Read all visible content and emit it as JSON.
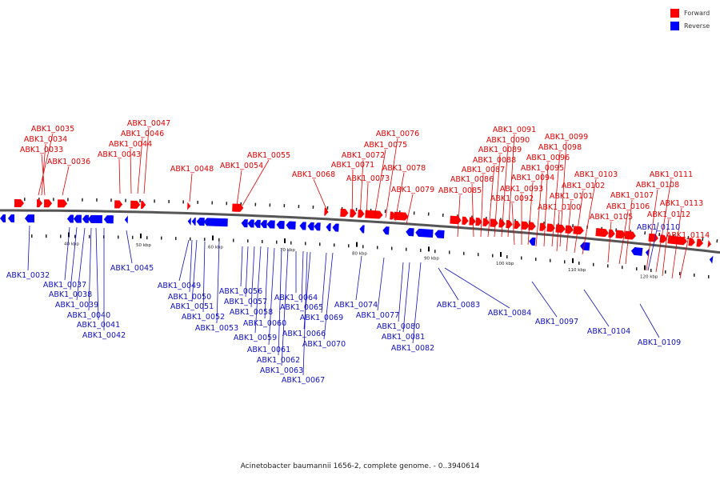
{
  "legend": {
    "forward_label": "Forward",
    "reverse_label": "Reverse",
    "forward_color": "#ff0000",
    "reverse_color": "#0000ff"
  },
  "caption": "Acinetobacter baumannii 1656-2, complete genome. - 0..3940614",
  "scale": {
    "unit": "kbp",
    "ticks": [
      "40 kbp",
      "50 kbp",
      "60 kbp",
      "70 kbp",
      "80 kbp",
      "90 kbp",
      "100 kbp",
      "110 kbp",
      "120 kbp"
    ]
  },
  "forward_genes": [
    "ABK1_0035",
    "ABK1_0034",
    "ABK1_0033",
    "ABK1_0036",
    "ABK1_0047",
    "ABK1_0046",
    "ABK1_0044",
    "ABK1_0043",
    "ABK1_0048",
    "ABK1_0055",
    "ABK1_0054",
    "ABK1_0068",
    "ABK1_0076",
    "ABK1_0075",
    "ABK1_0072",
    "ABK1_0071",
    "ABK1_0073",
    "ABK1_0078",
    "ABK1_0079",
    "ABK1_0091",
    "ABK1_0090",
    "ABK1_0089",
    "ABK1_0088",
    "ABK1_0087",
    "ABK1_0086",
    "ABK1_0085",
    "ABK1_0099",
    "ABK1_0098",
    "ABK1_0096",
    "ABK1_0095",
    "ABK1_0094",
    "ABK1_0093",
    "ABK1_0092",
    "ABK1_0103",
    "ABK1_0102",
    "ABK1_0101",
    "ABK1_0100",
    "ABK1_0111",
    "ABK1_0108",
    "ABK1_0107",
    "ABK1_0106",
    "ABK1_0105",
    "ABK1_0113",
    "ABK1_0112",
    "ABK1_0114"
  ],
  "reverse_genes": [
    "ABK1_0032",
    "ABK1_0037",
    "ABK1_0038",
    "ABK1_0039",
    "ABK1_0040",
    "ABK1_0041",
    "ABK1_0042",
    "ABK1_0045",
    "ABK1_0049",
    "ABK1_0050",
    "ABK1_0051",
    "ABK1_0052",
    "ABK1_0053",
    "ABK1_0056",
    "ABK1_0057",
    "ABK1_0058",
    "ABK1_0059",
    "ABK1_0060",
    "ABK1_0061",
    "ABK1_0062",
    "ABK1_0063",
    "ABK1_0064",
    "ABK1_0065",
    "ABK1_0066",
    "ABK1_0067",
    "ABK1_0069",
    "ABK1_0070",
    "ABK1_0074",
    "ABK1_0077",
    "ABK1_0080",
    "ABK1_0081",
    "ABK1_0082",
    "ABK1_0083",
    "ABK1_0084",
    "ABK1_0097",
    "ABK1_0104",
    "ABK1_0110",
    "ABK1_0109"
  ]
}
